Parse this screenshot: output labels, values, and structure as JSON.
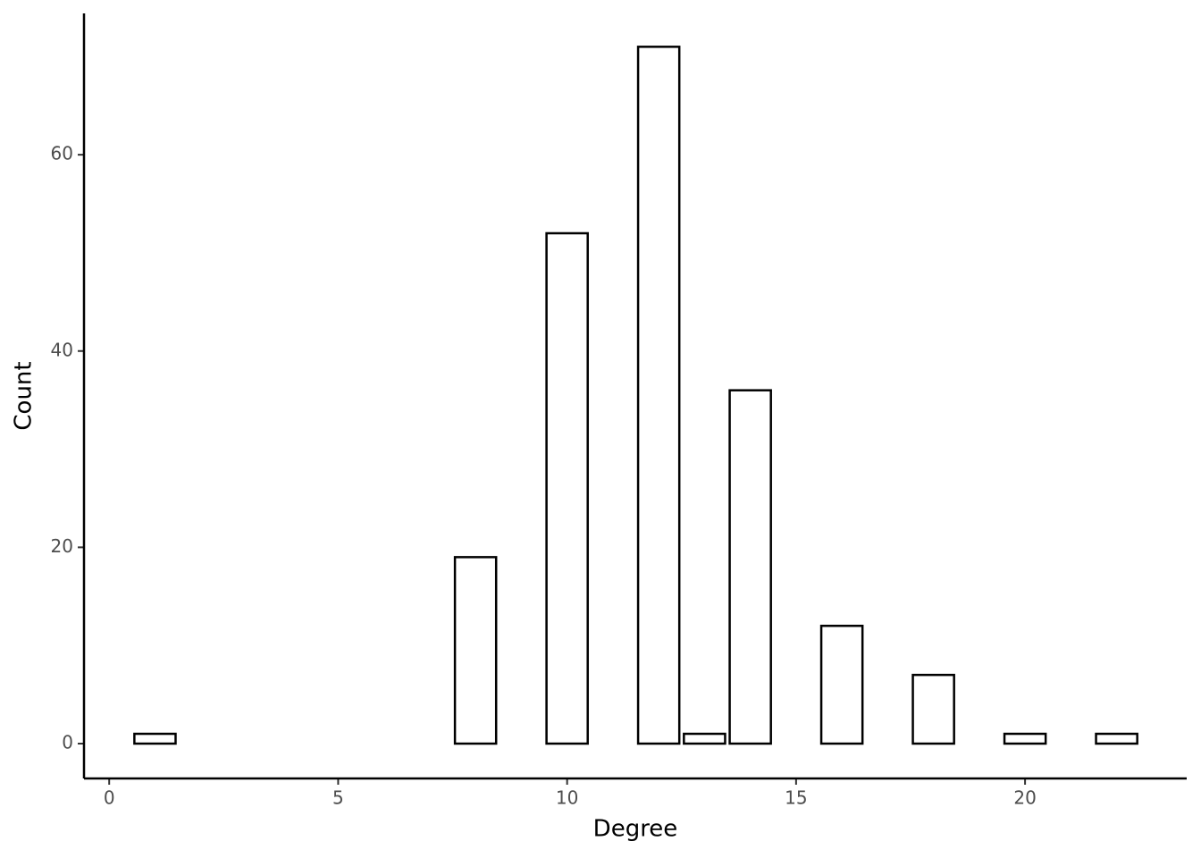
{
  "chart_data": {
    "type": "bar",
    "x_label": "Degree",
    "y_label": "Count",
    "x": [
      1,
      8,
      10,
      12,
      13,
      14,
      16,
      18,
      20,
      22
    ],
    "values": [
      1,
      19,
      52,
      71,
      1,
      36,
      12,
      7,
      1,
      1
    ],
    "color": "#ffffff",
    "edgecolor": "#000000",
    "xlim": [
      -0.55,
      23.53
    ],
    "ylim": [
      -3.55,
      74.4
    ],
    "xticks": [
      0,
      5,
      10,
      15,
      20
    ],
    "yticks": [
      0,
      20,
      40,
      60
    ],
    "grid": false
  }
}
